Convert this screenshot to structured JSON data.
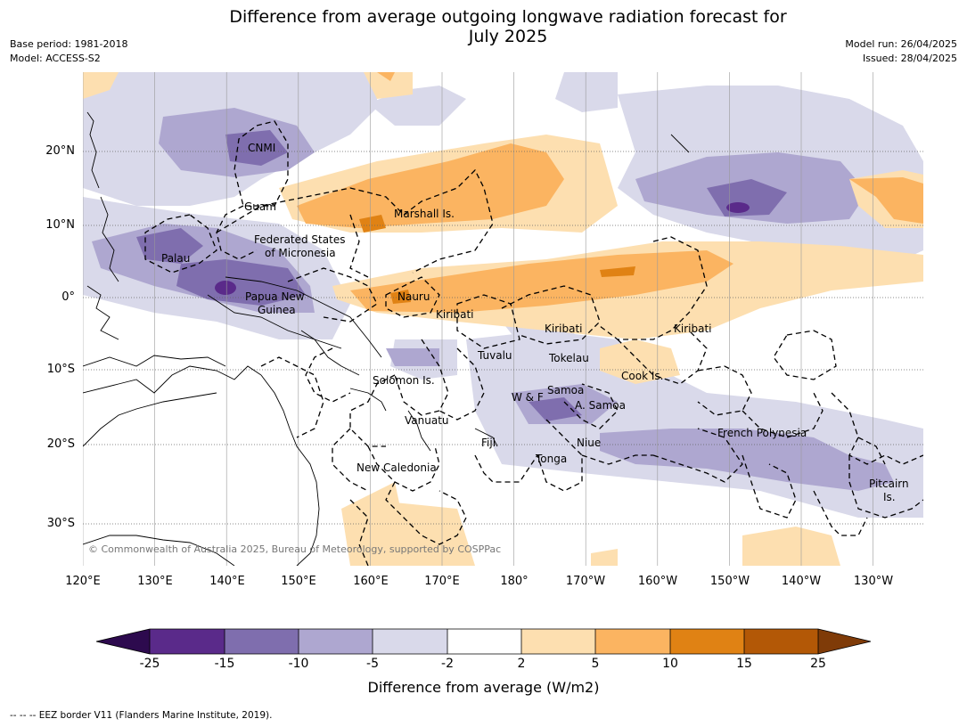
{
  "title_line1": "Difference from average outgoing longwave radiation forecast for",
  "title_line2": "July 2025",
  "meta_left": [
    "Base period: 1981-2018",
    "Model: ACCESS-S2"
  ],
  "meta_right": [
    "Model run: 26/04/2025",
    "Issued: 28/04/2025"
  ],
  "lat_labels": [
    "20°N",
    "10°N",
    "0°",
    "10°S",
    "20°S",
    "30°S"
  ],
  "lon_labels": [
    "120°E",
    "130°E",
    "140°E",
    "150°E",
    "160°E",
    "170°E",
    "180°",
    "170°W",
    "160°W",
    "150°W",
    "140°W",
    "130°W"
  ],
  "countries": {
    "cnmi": "CNMI",
    "guam": "Guam",
    "marshall": "Marshall Is.",
    "fsm_1": "Federated States",
    "fsm_2": "of Micronesia",
    "palau": "Palau",
    "nauru": "Nauru",
    "png_1": "Papua New",
    "png_2": "Guinea",
    "kiribati_w": "Kiribati",
    "kiribati_c": "Kiribati",
    "kiribati_e": "Kiribati",
    "tuvalu": "Tuvalu",
    "tokelau": "Tokelau",
    "cook": "Cook Is.",
    "solomon": "Solomon Is.",
    "samoa": "Samoa",
    "wf": "W & F",
    "asamoa": "A. Samoa",
    "vanuatu": "Vanuatu",
    "fiji": "Fiji",
    "niue": "Niue",
    "tonga": "Tonga",
    "french_polynesia": "French Polynesia",
    "new_caledonia": "New Caledonia",
    "pitcairn_1": "Pitcairn",
    "pitcairn_2": "Is."
  },
  "copyright": "© Commonwealth of Australia 2025, Bureau of Meteorology, supported by COSPPac",
  "colorbar": {
    "label": "Difference from average (W/m2)",
    "ticks": [
      "-25",
      "-15",
      "-10",
      "-5",
      "-2",
      "2",
      "5",
      "10",
      "15",
      "25"
    ],
    "colors": [
      "#2d0a4e",
      "#5a2a8a",
      "#7f6eae",
      "#aea7d0",
      "#d9d9ea",
      "#ffffff",
      "#fddfb0",
      "#fbb461",
      "#e08214",
      "#b35806",
      "#7f3b08"
    ]
  },
  "footer": "-- -- -- EEZ border V11 (Flanders Marine Institute, 2019)."
}
